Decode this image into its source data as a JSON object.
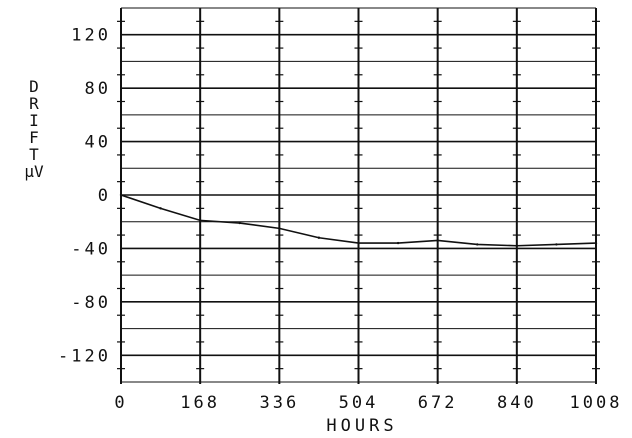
{
  "chart_data": {
    "type": "line",
    "xlabel": "HOURS",
    "ylabel_lines": [
      "D",
      "R",
      "I",
      "F",
      "T",
      "µV"
    ],
    "xlim": [
      0,
      1008
    ],
    "ylim": [
      -140,
      140
    ],
    "x_ticks": [
      0,
      168,
      336,
      504,
      672,
      840,
      1008
    ],
    "x_tick_labels": [
      "0",
      "168",
      "336",
      "504",
      "672",
      "840",
      "1008"
    ],
    "y_ticks": [
      120,
      80,
      40,
      0,
      -40,
      -80,
      -120
    ],
    "y_tick_labels": [
      "120",
      "80",
      "40",
      "0",
      "-40",
      "-80",
      "-120"
    ],
    "grid": true,
    "series": [
      {
        "x": [
          0,
          84,
          168,
          252,
          336,
          420,
          504,
          588,
          672,
          756,
          840,
          924,
          1008
        ],
        "y": [
          0,
          -10,
          -19,
          -21,
          -25,
          -32,
          -36,
          -36,
          -34,
          -37,
          -38,
          -37,
          -36
        ]
      }
    ],
    "colors": {
      "ink": "#111111",
      "background": "#ffffff"
    }
  }
}
